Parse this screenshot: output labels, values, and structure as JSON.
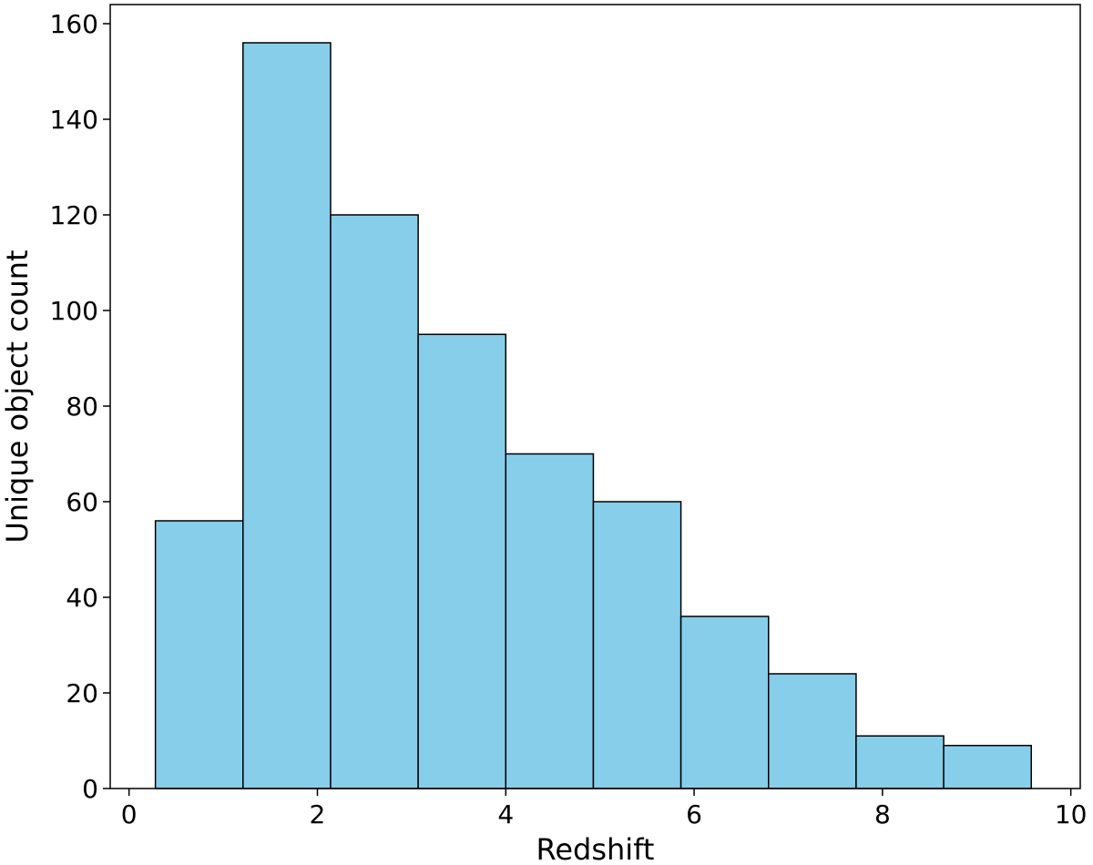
{
  "chart_data": {
    "type": "bar",
    "subtype": "histogram",
    "xlabel": "Redshift",
    "ylabel": "Unique object count",
    "xlim": [
      -0.2,
      10.1
    ],
    "ylim": [
      0,
      164
    ],
    "xticks": [
      0,
      2,
      4,
      6,
      8,
      10
    ],
    "yticks": [
      0,
      20,
      40,
      60,
      80,
      100,
      120,
      140,
      160
    ],
    "bins": [
      {
        "start": 0.28,
        "end": 1.21,
        "value": 56
      },
      {
        "start": 1.21,
        "end": 2.14,
        "value": 156
      },
      {
        "start": 2.14,
        "end": 3.07,
        "value": 120
      },
      {
        "start": 3.07,
        "end": 4.0,
        "value": 95
      },
      {
        "start": 4.0,
        "end": 4.93,
        "value": 70
      },
      {
        "start": 4.93,
        "end": 5.86,
        "value": 60
      },
      {
        "start": 5.86,
        "end": 6.79,
        "value": 36
      },
      {
        "start": 6.79,
        "end": 7.72,
        "value": 24
      },
      {
        "start": 7.72,
        "end": 8.65,
        "value": 11
      },
      {
        "start": 8.65,
        "end": 9.58,
        "value": 9
      }
    ],
    "bar_color": "#87ceeb",
    "edge_color": "#000000",
    "grid": false,
    "legend": "none"
  }
}
